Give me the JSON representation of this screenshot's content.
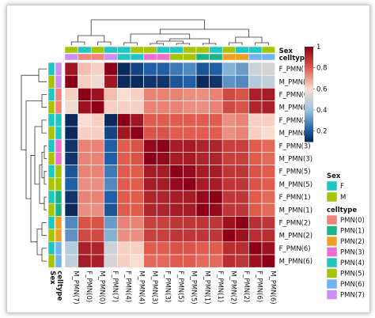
{
  "chart_data": {
    "type": "heatmap",
    "title": "",
    "labels": [
      "F_PMN(7)",
      "M_PMN(7)",
      "F_PMN(0)",
      "M_PMN(0)",
      "F_PMN(4)",
      "M_PMN(4)",
      "F_PMN(3)",
      "M_PMN(3)",
      "F_PMN(5)",
      "M_PMN(5)",
      "F_PMN(1)",
      "M_PMN(1)",
      "F_PMN(2)",
      "M_PMN(2)",
      "F_PMN(6)",
      "M_PMN(6)"
    ],
    "col_order": [
      1,
      2,
      3,
      0,
      4,
      5,
      7,
      6,
      8,
      9,
      11,
      10,
      13,
      12,
      14,
      15
    ],
    "sex": [
      "F",
      "M",
      "F",
      "M",
      "F",
      "M",
      "F",
      "M",
      "F",
      "M",
      "F",
      "M",
      "F",
      "M",
      "F",
      "M"
    ],
    "celltype": [
      "PMN(7)",
      "PMN(7)",
      "PMN(0)",
      "PMN(0)",
      "PMN(4)",
      "PMN(4)",
      "PMN(3)",
      "PMN(3)",
      "PMN(5)",
      "PMN(5)",
      "PMN(1)",
      "PMN(1)",
      "PMN(2)",
      "PMN(2)",
      "PMN(6)",
      "PMN(6)"
    ],
    "matrix": [
      [
        1.0,
        0.95,
        0.65,
        0.62,
        0.1,
        0.15,
        0.2,
        0.2,
        0.25,
        0.28,
        0.2,
        0.18,
        0.32,
        0.36,
        0.5,
        0.52
      ],
      [
        0.95,
        1.0,
        0.62,
        0.58,
        0.05,
        0.08,
        0.12,
        0.12,
        0.18,
        0.2,
        0.12,
        0.1,
        0.28,
        0.3,
        0.45,
        0.48
      ],
      [
        0.65,
        0.62,
        1.0,
        0.96,
        0.6,
        0.62,
        0.74,
        0.74,
        0.74,
        0.72,
        0.74,
        0.72,
        0.82,
        0.84,
        0.93,
        0.94
      ],
      [
        0.62,
        0.58,
        0.96,
        1.0,
        0.62,
        0.62,
        0.74,
        0.74,
        0.74,
        0.72,
        0.74,
        0.72,
        0.82,
        0.84,
        0.92,
        0.93
      ],
      [
        0.1,
        0.05,
        0.6,
        0.62,
        1.0,
        0.95,
        0.8,
        0.8,
        0.8,
        0.8,
        0.8,
        0.8,
        0.74,
        0.72,
        0.62,
        0.62
      ],
      [
        0.15,
        0.08,
        0.62,
        0.62,
        0.95,
        1.0,
        0.82,
        0.82,
        0.8,
        0.8,
        0.8,
        0.8,
        0.74,
        0.72,
        0.62,
        0.6
      ],
      [
        0.2,
        0.12,
        0.74,
        0.74,
        0.8,
        0.82,
        1.0,
        0.98,
        0.94,
        0.94,
        0.92,
        0.92,
        0.86,
        0.86,
        0.8,
        0.78
      ],
      [
        0.2,
        0.12,
        0.74,
        0.74,
        0.8,
        0.82,
        0.98,
        1.0,
        0.94,
        0.94,
        0.92,
        0.92,
        0.86,
        0.86,
        0.8,
        0.78
      ],
      [
        0.25,
        0.18,
        0.74,
        0.74,
        0.8,
        0.8,
        0.94,
        0.94,
        1.0,
        0.98,
        0.94,
        0.94,
        0.88,
        0.88,
        0.82,
        0.8
      ],
      [
        0.28,
        0.2,
        0.72,
        0.72,
        0.8,
        0.8,
        0.94,
        0.94,
        0.98,
        1.0,
        0.94,
        0.94,
        0.88,
        0.88,
        0.82,
        0.8
      ],
      [
        0.2,
        0.12,
        0.74,
        0.74,
        0.8,
        0.8,
        0.92,
        0.92,
        0.94,
        0.94,
        1.0,
        0.98,
        0.88,
        0.88,
        0.8,
        0.78
      ],
      [
        0.18,
        0.1,
        0.72,
        0.72,
        0.8,
        0.8,
        0.92,
        0.92,
        0.94,
        0.94,
        0.98,
        1.0,
        0.88,
        0.88,
        0.8,
        0.78
      ],
      [
        0.32,
        0.28,
        0.82,
        0.82,
        0.74,
        0.74,
        0.86,
        0.86,
        0.88,
        0.88,
        0.88,
        0.88,
        1.0,
        0.96,
        0.9,
        0.88
      ],
      [
        0.36,
        0.3,
        0.84,
        0.84,
        0.72,
        0.72,
        0.86,
        0.86,
        0.88,
        0.88,
        0.88,
        0.88,
        0.96,
        1.0,
        0.9,
        0.9
      ],
      [
        0.5,
        0.45,
        0.93,
        0.92,
        0.62,
        0.62,
        0.8,
        0.8,
        0.82,
        0.82,
        0.8,
        0.8,
        0.9,
        0.9,
        1.0,
        0.96
      ],
      [
        0.52,
        0.48,
        0.94,
        0.93,
        0.62,
        0.6,
        0.78,
        0.78,
        0.8,
        0.8,
        0.78,
        0.78,
        0.88,
        0.9,
        0.96,
        1.0
      ]
    ],
    "colorscale": {
      "stops": [
        0.1,
        0.2,
        0.4,
        0.6,
        0.8,
        1.0
      ],
      "colors": [
        "#0b2a5c",
        "#1f5fa6",
        "#9dc5df",
        "#f9ddd0",
        "#e05c4e",
        "#8b0016"
      ],
      "ticks": [
        "1",
        "0.8",
        "0.6",
        "0.4",
        "0.2"
      ]
    },
    "annotation_labels": {
      "sex": "Sex",
      "celltype": "celltype"
    },
    "legend": {
      "sex_title": "Sex",
      "sex_levels": [
        {
          "label": "F",
          "color": "#1ec7c2"
        },
        {
          "label": "M",
          "color": "#a8c400"
        }
      ],
      "celltype_title": "celltype",
      "celltype_levels": [
        {
          "label": "PMN(0)",
          "color": "#f2827a"
        },
        {
          "label": "PMN(1)",
          "color": "#1bb38a"
        },
        {
          "label": "PMN(2)",
          "color": "#f0a020"
        },
        {
          "label": "PMN(3)",
          "color": "#ee6fd2"
        },
        {
          "label": "PMN(4)",
          "color": "#22c6c0"
        },
        {
          "label": "PMN(5)",
          "color": "#a5c400"
        },
        {
          "label": "PMN(6)",
          "color": "#6fb3f0"
        },
        {
          "label": "PMN(7)",
          "color": "#cf8ef5"
        }
      ]
    }
  }
}
